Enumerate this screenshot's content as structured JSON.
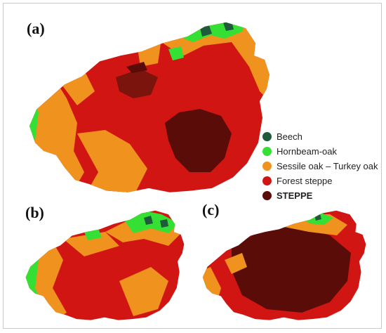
{
  "panels": {
    "a": "(a)",
    "b": "(b)",
    "c": "(c)"
  },
  "legend": [
    {
      "label": "Beech",
      "color": "#1f5a3a"
    },
    {
      "label": "Hornbeam-oak",
      "color": "#35e035"
    },
    {
      "label": "Sessile oak – Turkey oak",
      "color": "#f0921e"
    },
    {
      "label": "Forest steppe",
      "color": "#d01512"
    },
    {
      "label": "STEPPE",
      "color": "#5a0c08",
      "bold": true
    }
  ],
  "colors": {
    "beech": "#1f5a3a",
    "hornbeam_oak": "#35e035",
    "sessile_turkey_oak": "#f0921e",
    "forest_steppe": "#d01512",
    "steppe": "#5a0c08"
  }
}
